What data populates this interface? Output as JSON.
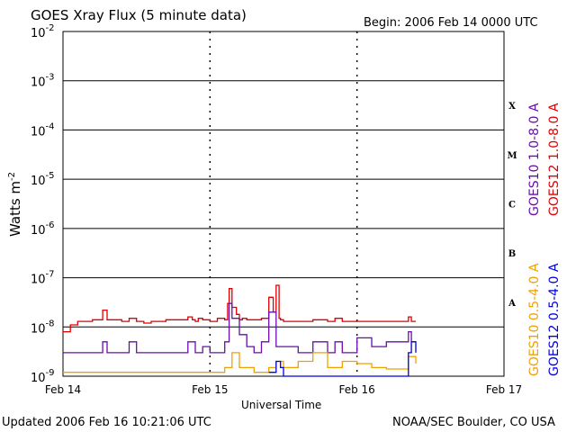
{
  "chart_data": {
    "type": "line",
    "title": "GOES Xray Flux (5 minute data)",
    "begin_text": "Begin:  2006 Feb 14 0000 UTC",
    "ylabel": "Watts m",
    "ylabel_sup": "-2",
    "xlabel": "Universal Time",
    "y_scale": "log",
    "ylim": [
      1e-09,
      0.01
    ],
    "y_ticks": [
      {
        "base": "10",
        "exp": "-2"
      },
      {
        "base": "10",
        "exp": "-3"
      },
      {
        "base": "10",
        "exp": "-4"
      },
      {
        "base": "10",
        "exp": "-5"
      },
      {
        "base": "10",
        "exp": "-6"
      },
      {
        "base": "10",
        "exp": "-7"
      },
      {
        "base": "10",
        "exp": "-8"
      },
      {
        "base": "10",
        "exp": "-9"
      }
    ],
    "x_ticks": [
      "Feb 14",
      "Feb 15",
      "Feb 16",
      "Feb 17"
    ],
    "xlim_days": [
      0,
      3
    ],
    "flare_classes": [
      "X",
      "M",
      "C",
      "B",
      "A"
    ],
    "grid": "horizontal lines at each decade",
    "legend": [
      {
        "name": "GOES10 1.0-8.0 A",
        "color": "#6a0dad"
      },
      {
        "name": "GOES12 1.0-8.0 A",
        "color": "#e00000"
      },
      {
        "name": "GOES10 0.5-4.0 A",
        "color": "#f0a000"
      },
      {
        "name": "GOES12 0.5-4.0 A",
        "color": "#0000e0"
      }
    ],
    "series": [
      {
        "name": "GOES12 1.0-8.0 A",
        "color": "#e00000",
        "x": [
          0.0,
          0.05,
          0.1,
          0.2,
          0.27,
          0.3,
          0.4,
          0.45,
          0.5,
          0.55,
          0.6,
          0.7,
          0.8,
          0.85,
          0.88,
          0.9,
          0.92,
          0.95,
          1.0,
          1.05,
          1.1,
          1.12,
          1.13,
          1.15,
          1.18,
          1.2,
          1.22,
          1.25,
          1.3,
          1.35,
          1.4,
          1.43,
          1.45,
          1.47,
          1.48,
          1.5,
          1.6,
          1.7,
          1.8,
          1.85,
          1.9,
          2.0,
          2.1,
          2.2,
          2.3,
          2.35,
          2.37,
          2.4
        ],
        "y": [
          8e-09,
          1.1e-08,
          1.3e-08,
          1.4e-08,
          2.2e-08,
          1.4e-08,
          1.3e-08,
          1.5e-08,
          1.3e-08,
          1.2e-08,
          1.3e-08,
          1.4e-08,
          1.4e-08,
          1.6e-08,
          1.4e-08,
          1.3e-08,
          1.5e-08,
          1.4e-08,
          1.3e-08,
          1.5e-08,
          1.4e-08,
          3e-08,
          6e-08,
          2.5e-08,
          1.8e-08,
          1.4e-08,
          1.5e-08,
          1.4e-08,
          1.4e-08,
          1.5e-08,
          4e-08,
          2e-08,
          7e-08,
          1.5e-08,
          1.4e-08,
          1.3e-08,
          1.3e-08,
          1.4e-08,
          1.3e-08,
          1.5e-08,
          1.3e-08,
          1.3e-08,
          1.3e-08,
          1.3e-08,
          1.3e-08,
          1.6e-08,
          1.3e-08,
          1.3e-08
        ]
      },
      {
        "name": "GOES10 1.0-8.0 A",
        "color": "#6a0dad",
        "x": [
          0.0,
          0.1,
          0.27,
          0.3,
          0.45,
          0.5,
          0.6,
          0.7,
          0.8,
          0.85,
          0.9,
          0.95,
          1.0,
          1.1,
          1.13,
          1.15,
          1.2,
          1.25,
          1.3,
          1.35,
          1.4,
          1.45,
          1.5,
          1.6,
          1.7,
          1.8,
          1.85,
          1.9,
          2.0,
          2.1,
          2.2,
          2.3,
          2.35,
          2.37,
          2.4
        ],
        "y": [
          3e-09,
          3e-09,
          5e-09,
          3e-09,
          5e-09,
          3e-09,
          3e-09,
          3e-09,
          3e-09,
          5e-09,
          3e-09,
          4e-09,
          3e-09,
          5e-09,
          3e-08,
          1.5e-08,
          7e-09,
          4e-09,
          3e-09,
          5e-09,
          2e-08,
          4e-09,
          4e-09,
          3e-09,
          5e-09,
          3e-09,
          5e-09,
          3e-09,
          6e-09,
          4e-09,
          5e-09,
          5e-09,
          8e-09,
          5e-09,
          5e-09
        ]
      },
      {
        "name": "GOES10 0.5-4.0 A",
        "color": "#f0a000",
        "x": [
          0.0,
          0.27,
          0.3,
          0.5,
          0.8,
          1.0,
          1.1,
          1.15,
          1.2,
          1.3,
          1.4,
          1.45,
          1.5,
          1.6,
          1.7,
          1.8,
          1.9,
          2.0,
          2.1,
          2.2,
          2.3,
          2.35,
          2.4
        ],
        "y": [
          1.2e-09,
          1.2e-09,
          1.2e-09,
          1.2e-09,
          1.2e-09,
          1.2e-09,
          1.5e-09,
          3e-09,
          1.5e-09,
          1.2e-09,
          1.5e-09,
          2e-09,
          1.5e-09,
          2e-09,
          3e-09,
          1.5e-09,
          2e-09,
          1.8e-09,
          1.5e-09,
          1.4e-09,
          1.4e-09,
          2.5e-09,
          1.8e-09
        ]
      },
      {
        "name": "GOES12 0.5-4.0 A",
        "color": "#0000e0",
        "x": [
          1.4,
          1.45,
          1.48,
          1.5,
          2.35,
          2.37,
          2.4
        ],
        "y": [
          1.2e-09,
          2e-09,
          1.5e-09,
          1e-09,
          3e-09,
          5e-09,
          3e-09
        ]
      }
    ],
    "footer_left": "Updated 2006 Feb 16 10:21:06 UTC",
    "footer_right": "NOAA/SEC Boulder, CO USA"
  }
}
